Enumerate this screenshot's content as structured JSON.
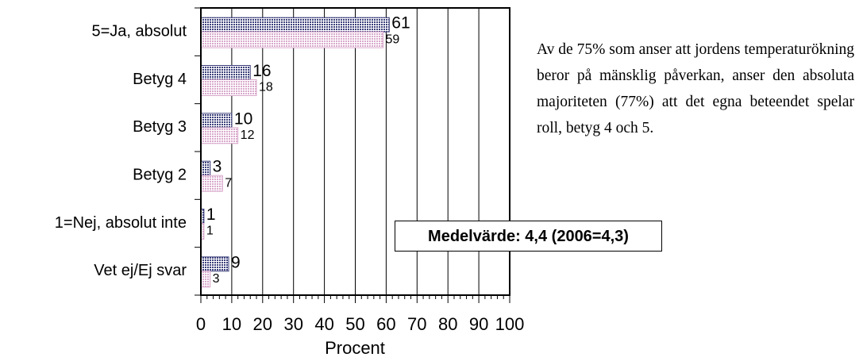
{
  "chart_data": {
    "type": "hbar",
    "categories": [
      "5=Ja, absolut",
      "Betyg 4",
      "Betyg 3",
      "Betyg 2",
      "1=Nej, absolut inte",
      "Vet ej/Ej svar"
    ],
    "series": [
      {
        "color": "#3b3f7a",
        "values": [
          61,
          16,
          10,
          3,
          1,
          9
        ]
      },
      {
        "color": "#d9a9cc",
        "values": [
          59,
          18,
          12,
          7,
          1,
          3
        ]
      }
    ],
    "xlabel": "Procent",
    "xlim": [
      0,
      100
    ],
    "xticks": [
      0,
      10,
      20,
      30,
      40,
      50,
      60,
      70,
      80,
      90,
      100
    ],
    "grid": true,
    "annotation": "Medelvärde: 4,4 (2006=4,3)",
    "note": "Av de 75% som anser att jordens temperaturökning beror på mänsklig påverkan, anser den absoluta majoriteten (77%) att det egna beteendet spelar roll, betyg 4 och 5."
  }
}
